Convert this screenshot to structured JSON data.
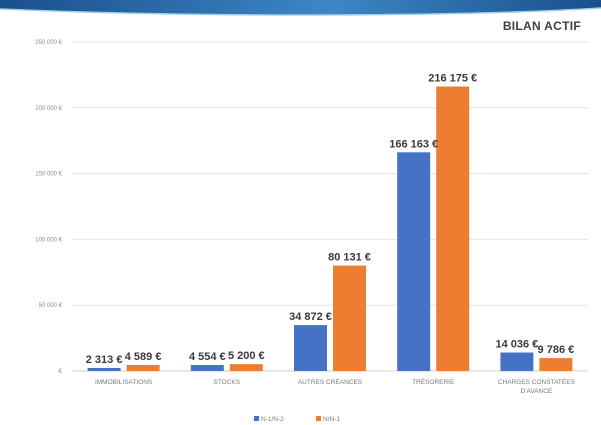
{
  "chart_data": {
    "type": "bar",
    "title": "BILAN ACTIF",
    "categories": [
      "IMMOBILISATIONS",
      "STOCKS",
      "AUTRES CRÉANCES",
      "TRÉSORERIE",
      "CHARGES CONSTATÉES D'AVANCE"
    ],
    "series": [
      {
        "name": "N-1/N-2",
        "color": "#4472C4",
        "values": [
          2313,
          4554,
          34872,
          166163,
          14036
        ],
        "labels": [
          "2 313 €",
          "4 554 €",
          "34 872 €",
          "166 163 €",
          "14 036 €"
        ]
      },
      {
        "name": "N/N-1",
        "color": "#ED7D31",
        "values": [
          4589,
          5200,
          80131,
          216175,
          9786
        ],
        "labels": [
          "4 589 €",
          "5 200 €",
          "80 131 €",
          "216 175 €",
          "9 786 €"
        ]
      }
    ],
    "ylim": [
      0,
      250000
    ],
    "yticks": [
      {
        "value": 0,
        "label": "€"
      },
      {
        "value": 50000,
        "label": "50 000 €"
      },
      {
        "value": 100000,
        "label": "100 000 €"
      },
      {
        "value": 150000,
        "label": "150 000 €"
      },
      {
        "value": 200000,
        "label": "200 000 €"
      },
      {
        "value": 250000,
        "label": "250 000 €"
      }
    ],
    "grid": true,
    "legend_position": "bottom"
  }
}
